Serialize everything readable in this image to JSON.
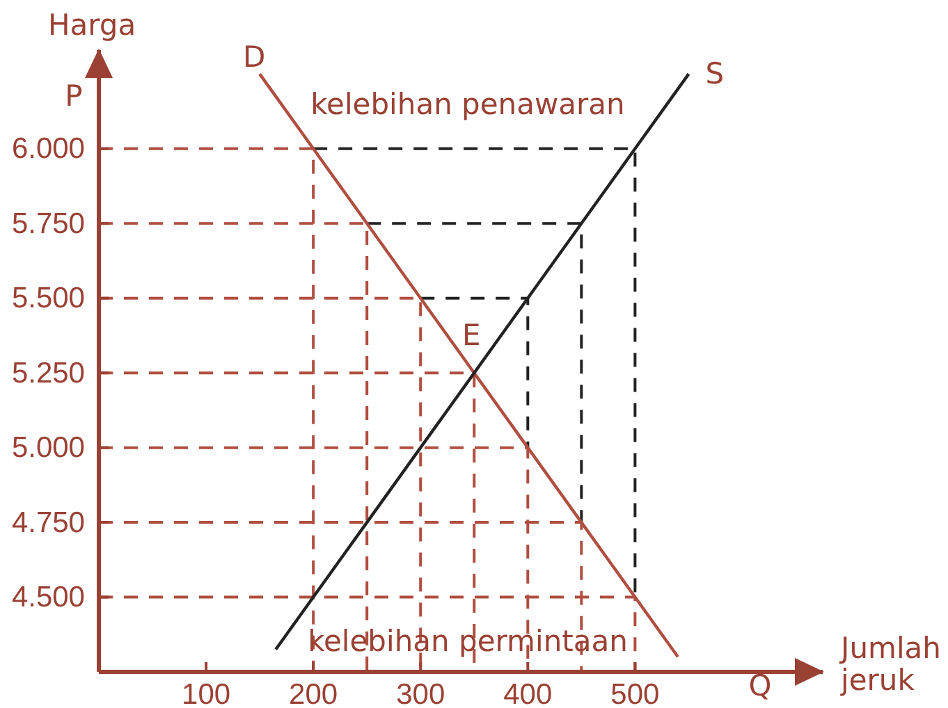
{
  "chart_data": {
    "type": "line",
    "xlabel": "Jumlah jeruk",
    "ylabel": "Harga",
    "annotations": [
      "P",
      "Q",
      "kelebihan penawaran",
      "kelebihan permintaan",
      {
        "text": "E",
        "x": 350,
        "y": 5250
      }
    ],
    "xlim": [
      0,
      675
    ],
    "ylim": [
      4250,
      6330
    ],
    "xticks": [
      100,
      200,
      300,
      400,
      500
    ],
    "yticks": [
      {
        "value": 4500,
        "label": "4.500"
      },
      {
        "value": 4750,
        "label": "4.750"
      },
      {
        "value": 5000,
        "label": "5.000"
      },
      {
        "value": 5250,
        "label": "5.250"
      },
      {
        "value": 5500,
        "label": "5.500"
      },
      {
        "value": 5750,
        "label": "5.750"
      },
      {
        "value": 6000,
        "label": "6.000"
      }
    ],
    "grid": false,
    "legend": false,
    "marker": "none",
    "line_style": "solid",
    "series": [
      {
        "name": "D",
        "color": "#b04e40",
        "x": [
          150,
          200,
          250,
          300,
          350,
          400,
          450,
          500,
          540
        ],
        "values": [
          6250,
          6000,
          5750,
          5500,
          5250,
          5000,
          4750,
          4500,
          4300
        ]
      },
      {
        "name": "S",
        "color": "#222222",
        "x": [
          165,
          200,
          250,
          300,
          350,
          400,
          450,
          500,
          550
        ],
        "values": [
          4325,
          4500,
          4750,
          5000,
          5250,
          5500,
          5750,
          6000,
          6250
        ]
      },
      {
        "color": "#b04e40",
        "line_style": "dashed",
        "x": [
          0,
          200,
          200
        ],
        "values": [
          6000,
          6000,
          4250
        ]
      },
      {
        "color": "#b04e40",
        "line_style": "dashed",
        "x": [
          0,
          250,
          250
        ],
        "values": [
          5750,
          5750,
          4250
        ]
      },
      {
        "color": "#b04e40",
        "line_style": "dashed",
        "x": [
          0,
          300,
          300
        ],
        "values": [
          5500,
          5500,
          4250
        ]
      },
      {
        "color": "#b04e40",
        "line_style": "dashed",
        "x": [
          0,
          350,
          350
        ],
        "values": [
          5250,
          5250,
          4250
        ]
      },
      {
        "color": "#b04e40",
        "line_style": "dashed",
        "x": [
          0,
          400,
          400
        ],
        "values": [
          5000,
          5000,
          4250
        ]
      },
      {
        "color": "#b04e40",
        "line_style": "dashed",
        "x": [
          0,
          450,
          450
        ],
        "values": [
          4750,
          4750,
          4250
        ]
      },
      {
        "color": "#b04e40",
        "line_style": "dashed",
        "x": [
          0,
          500,
          500
        ],
        "values": [
          4500,
          4500,
          4250
        ]
      },
      {
        "color": "#222222",
        "line_style": "dashed",
        "x": [
          200,
          500,
          500
        ],
        "values": [
          6000,
          6000,
          4500
        ]
      },
      {
        "color": "#222222",
        "line_style": "dashed",
        "x": [
          250,
          450,
          450
        ],
        "values": [
          5750,
          5750,
          4750
        ]
      },
      {
        "color": "#222222",
        "line_style": "dashed",
        "x": [
          300,
          400,
          400
        ],
        "values": [
          5500,
          5500,
          5000
        ]
      }
    ]
  }
}
